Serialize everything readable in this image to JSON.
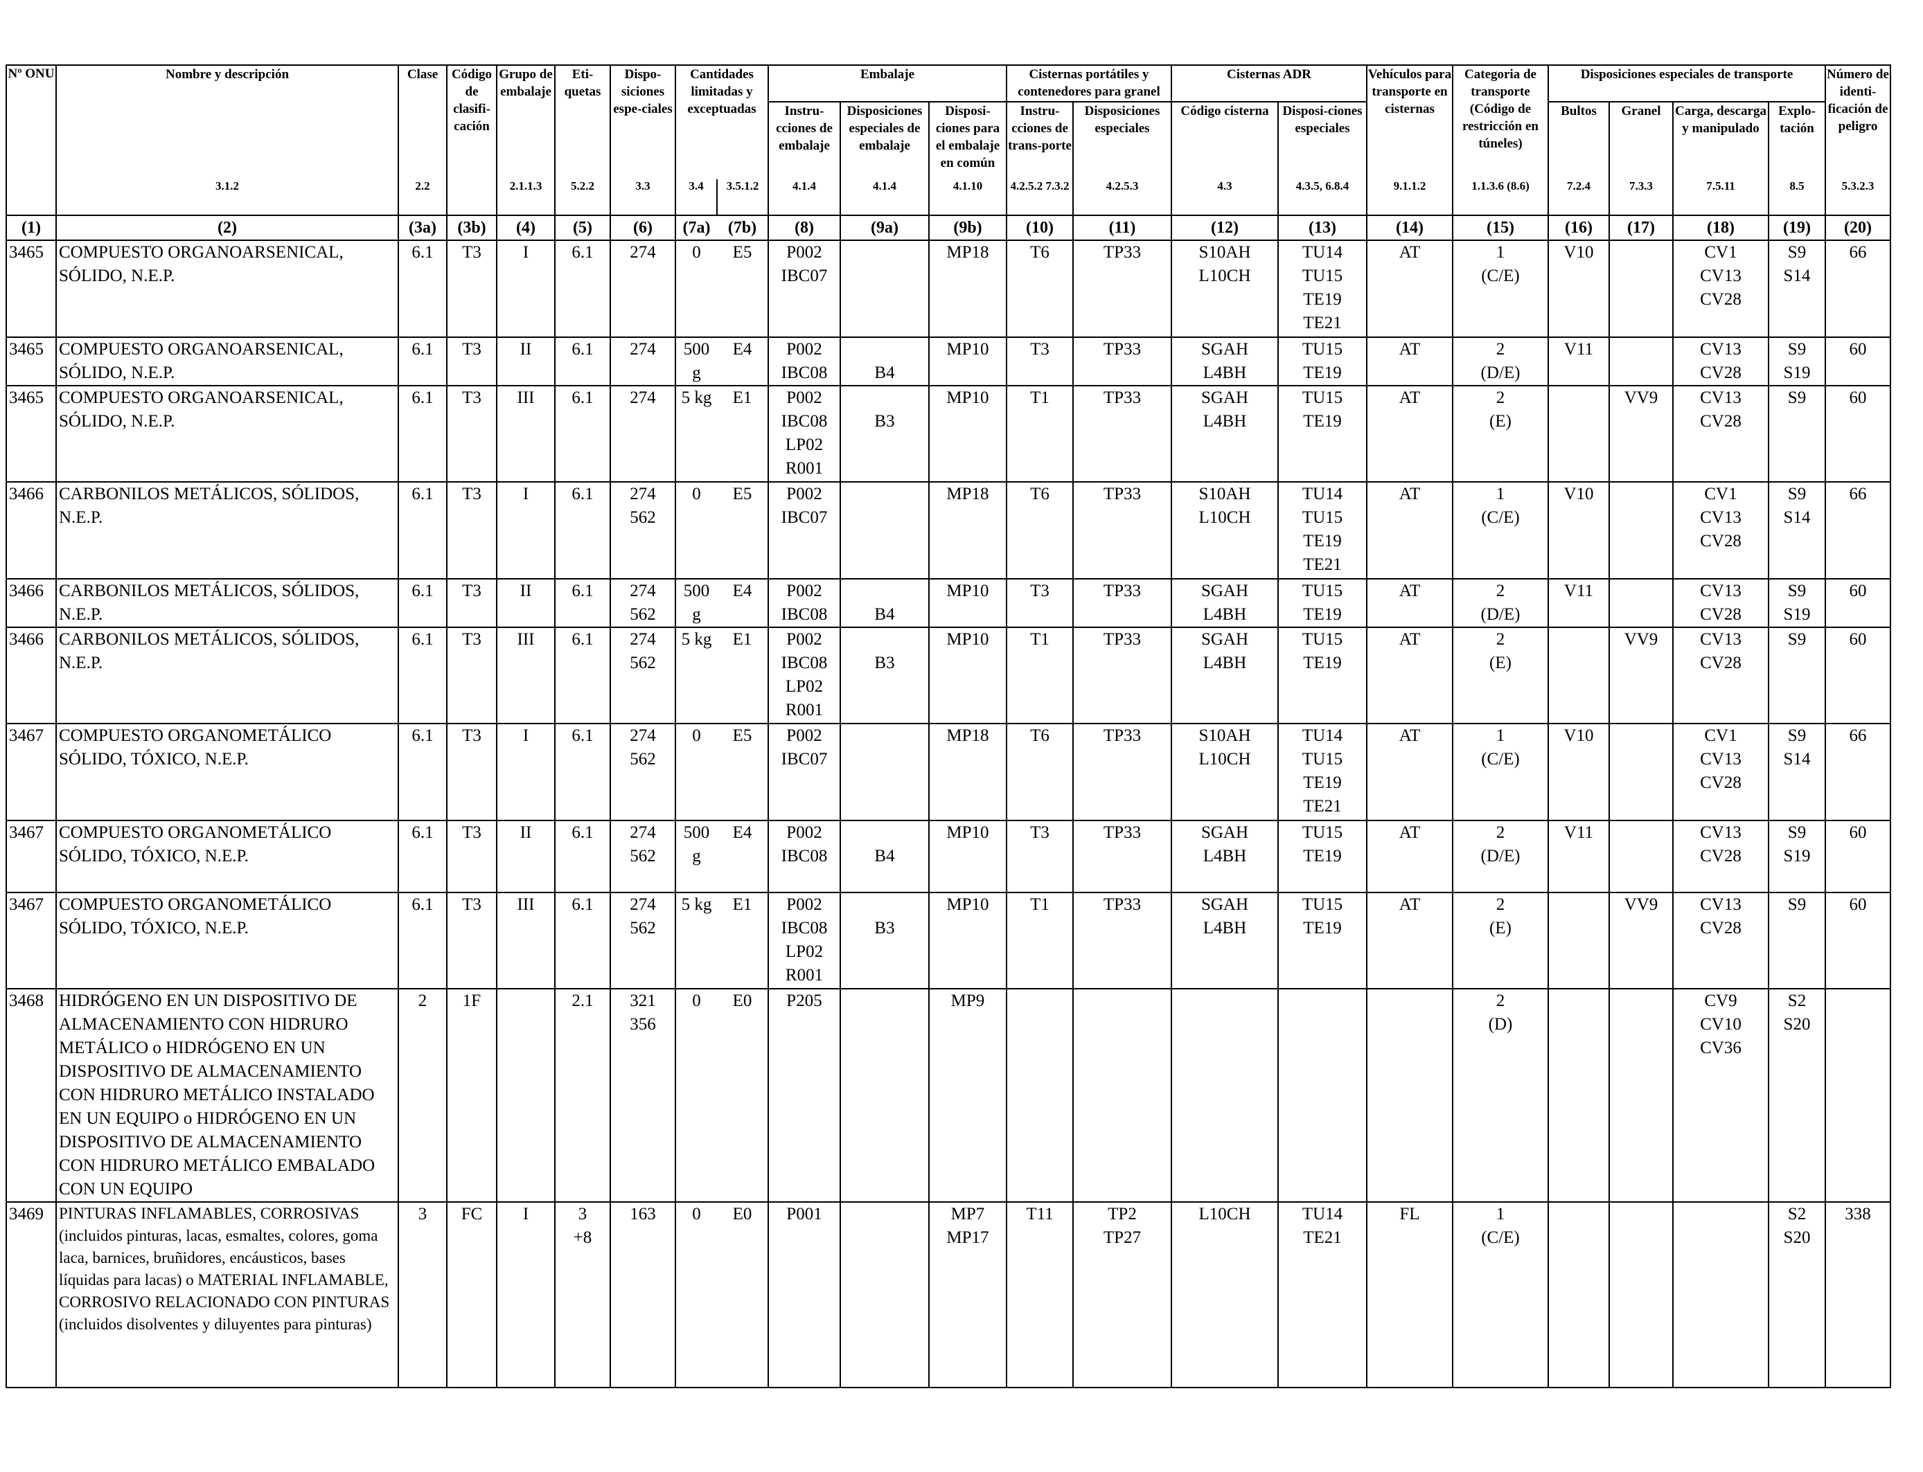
{
  "headers": {
    "un_no": "Nº ONU",
    "name": "Nombre y descripción",
    "clase": "Clase",
    "codigo_clasif": "Código de clasifi-cación",
    "grupo_embalaje": "Grupo de embalaje",
    "etiquetas": "Eti-quetas",
    "disposiciones_especiales": "Dispo-siciones espe-ciales",
    "cantidades": "Cantidades limitadas y exceptuadas",
    "embalaje": "Embalaje",
    "instrucciones_embalaje": "Instru-cciones de embalaje",
    "disp_esp_embalaje": "Disposiciones especiales de embalaje",
    "disp_embalaje_comun": "Disposi-ciones para el embalaje en común",
    "cisternas_portatiles": "Cisternas portátiles y contenedores para granel",
    "instr_transporte": "Instru-cciones de trans-porte",
    "disp_especiales_cist": "Disposiciones especiales",
    "cisternas_adr": "Cisternas ADR",
    "codigo_cisterna": "Código cisterna",
    "disp_especiales_adr": "Disposi-ciones especiales",
    "vehiculos": "Vehículos para transporte en cisternas",
    "categoria_transporte": "Categoria de transporte (Código de restricción en túneles)",
    "disp_esp_transporte": "Disposiciones especiales de transporte",
    "bultos": "Bultos",
    "granel": "Granel",
    "carga": "Carga, descarga y manipulado",
    "explotacion": "Explo-tación",
    "numero_peligro": "Número de identi-ficación de peligro"
  },
  "refs": [
    "3.1.2",
    "2.2",
    "",
    "2.1.1.3",
    "5.2.2",
    "3.3",
    "3.4",
    "3.5.1.2",
    "4.1.4",
    "4.1.4",
    "4.1.10",
    "4.2.5.2 7.3.2",
    "4.2.5.3",
    "4.3",
    "4.3.5, 6.8.4",
    "9.1.1.2",
    "1.1.3.6 (8.6)",
    "7.2.4",
    "7.3.3",
    "7.5.11",
    "8.5",
    "5.3.2.3"
  ],
  "col_numbers": [
    "(1)",
    "(2)",
    "(3a)",
    "(3b)",
    "(4)",
    "(5)",
    "(6)",
    "(7a)",
    "(7b)",
    "(8)",
    "(9a)",
    "(9b)",
    "(10)",
    "(11)",
    "(12)",
    "(13)",
    "(14)",
    "(15)",
    "(16)",
    "(17)",
    "(18)",
    "(19)",
    "(20)"
  ],
  "rows": [
    [
      "3465",
      "COMPUESTO ORGANOARSENICAL,\nSÓLIDO, N.E.P.",
      "6.1",
      "T3",
      "I",
      "6.1",
      "274",
      "0",
      "E5",
      "P002\nIBC07",
      "",
      "MP18",
      "T6",
      "TP33",
      "S10AH\nL10CH",
      "TU14\nTU15\nTE19\nTE21",
      "AT",
      "1\n(C/E)",
      "V10",
      "",
      "CV1\nCV13\nCV28",
      "S9\nS14",
      "66"
    ],
    [
      "3465",
      "COMPUESTO ORGANOARSENICAL,\nSÓLIDO, N.E.P.",
      "6.1",
      "T3",
      "II",
      "6.1",
      "274",
      "500\ng",
      "E4",
      "P002\nIBC08",
      "\nB4",
      "MP10",
      "T3",
      "TP33",
      "SGAH\nL4BH",
      "TU15\nTE19",
      "AT",
      "2\n(D/E)",
      "V11",
      "",
      "CV13\nCV28",
      "S9\nS19",
      "60"
    ],
    [
      "3465",
      "COMPUESTO ORGANOARSENICAL,\nSÓLIDO, N.E.P.",
      "6.1",
      "T3",
      "III",
      "6.1",
      "274",
      "5 kg",
      "E1",
      "P002\nIBC08\nLP02\nR001",
      "\nB3",
      "MP10",
      "T1",
      "TP33",
      "SGAH\nL4BH",
      "TU15\nTE19",
      "AT",
      "2\n(E)",
      "",
      "VV9",
      "CV13\nCV28",
      "S9",
      "60"
    ],
    [
      "3466",
      "CARBONILOS METÁLICOS, SÓLIDOS,\nN.E.P.",
      "6.1",
      "T3",
      "I",
      "6.1",
      "274\n562",
      "0",
      "E5",
      "P002\nIBC07",
      "",
      "MP18",
      "T6",
      "TP33",
      "S10AH\nL10CH",
      "TU14\nTU15\nTE19\nTE21",
      "AT",
      "1\n(C/E)",
      "V10",
      "",
      "CV1\nCV13\nCV28",
      "S9\nS14",
      "66"
    ],
    [
      "3466",
      "CARBONILOS METÁLICOS, SÓLIDOS,\nN.E.P.",
      "6.1",
      "T3",
      "II",
      "6.1",
      "274\n562",
      "500\ng",
      "E4",
      "P002\nIBC08",
      "\nB4",
      "MP10",
      "T3",
      "TP33",
      "SGAH\nL4BH",
      "TU15\nTE19",
      "AT",
      "2\n(D/E)",
      "V11",
      "",
      "CV13\nCV28",
      "S9\nS19",
      "60"
    ],
    [
      "3466",
      "CARBONILOS METÁLICOS, SÓLIDOS,\nN.E.P.",
      "6.1",
      "T3",
      "III",
      "6.1",
      "274\n562",
      "5 kg",
      "E1",
      "P002\nIBC08\nLP02\nR001",
      "\nB3",
      "MP10",
      "T1",
      "TP33",
      "SGAH\nL4BH",
      "TU15\nTE19",
      "AT",
      "2\n(E)",
      "",
      "VV9",
      "CV13\nCV28",
      "S9",
      "60"
    ],
    [
      "3467",
      "COMPUESTO ORGANOMETÁLICO\nSÓLIDO, TÓXICO, N.E.P.",
      "6.1",
      "T3",
      "I",
      "6.1",
      "274\n562",
      "0",
      "E5",
      "P002\nIBC07",
      "",
      "MP18",
      "T6",
      "TP33",
      "S10AH\nL10CH",
      "TU14\nTU15\nTE19\nTE21",
      "AT",
      "1\n(C/E)",
      "V10",
      "",
      "CV1\nCV13\nCV28",
      "S9\nS14",
      "66"
    ],
    [
      "3467",
      "COMPUESTO ORGANOMETÁLICO\nSÓLIDO, TÓXICO, N.E.P.",
      "6.1",
      "T3",
      "II",
      "6.1",
      "274\n562",
      "500\ng",
      "E4",
      "P002\nIBC08",
      "\nB4",
      "MP10",
      "T3",
      "TP33",
      "SGAH\nL4BH",
      "TU15\nTE19",
      "AT",
      "2\n(D/E)",
      "V11",
      "",
      "CV13\nCV28",
      "S9\nS19",
      "60"
    ],
    [
      "3467",
      "COMPUESTO ORGANOMETÁLICO\nSÓLIDO, TÓXICO, N.E.P.",
      "6.1",
      "T3",
      "III",
      "6.1",
      "274\n562",
      "5 kg",
      "E1",
      "P002\nIBC08\nLP02\nR001",
      "\nB3",
      "MP10",
      "T1",
      "TP33",
      "SGAH\nL4BH",
      "TU15\nTE19",
      "AT",
      "2\n(E)",
      "",
      "VV9",
      "CV13\nCV28",
      "S9",
      "60"
    ],
    [
      "3468",
      "HIDRÓGENO EN UN DISPOSITIVO DE ALMACENAMIENTO CON HIDRURO METÁLICO o HIDRÓGENO EN UN DISPOSITIVO DE ALMACENAMIENTO CON HIDRURO METÁLICO INSTALADO EN UN EQUIPO o HIDRÓGENO EN UN DISPOSITIVO DE ALMACENAMIENTO CON HIDRURO METÁLICO EMBALADO CON UN EQUIPO",
      "2",
      "1F",
      "",
      "2.1",
      "321\n356",
      "0",
      "E0",
      "P205",
      "",
      "MP9",
      "",
      "",
      "",
      "",
      "",
      "2\n(D)",
      "",
      "",
      "CV9\nCV10\nCV36",
      "S2\nS20",
      ""
    ],
    [
      "3469",
      "PINTURAS INFLAMABLES, CORROSIVAS (incluidos pinturas, lacas, esmaltes, colores, goma laca, barnices, bruñidores, encáusticos, bases líquidas para lacas) o MATERIAL INFLAMABLE, CORROSIVO RELACIONADO CON PINTURAS (incluidos disolventes y diluyentes para pinturas)",
      "3",
      "FC",
      "I",
      "3\n+8",
      "163",
      "0",
      "E0",
      "P001",
      "",
      "MP7\nMP17",
      "T11",
      "TP2\nTP27",
      "L10CH",
      "TU14\nTE21",
      "FL",
      "1\n(C/E)",
      "",
      "",
      "",
      "S2\nS20",
      "338"
    ]
  ]
}
